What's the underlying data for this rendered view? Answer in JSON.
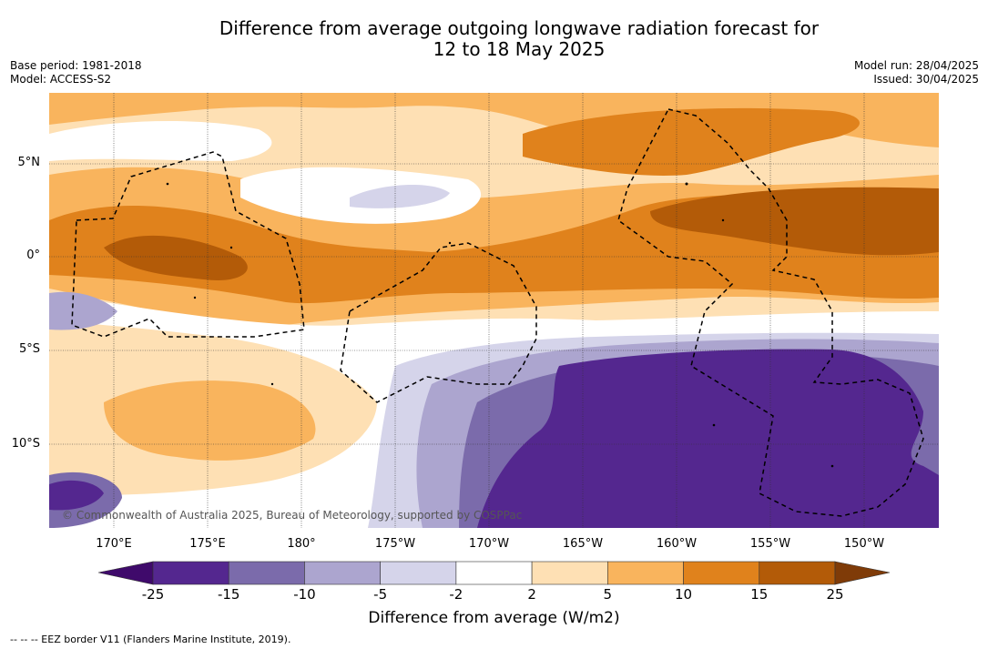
{
  "title": {
    "line1": "Difference from average outgoing longwave radiation forecast for",
    "line2": "12 to 18 May 2025"
  },
  "meta_left": {
    "base_period": "Base period: 1981-2018",
    "model": "Model: ACCESS-S2"
  },
  "meta_right": {
    "model_run": "Model run: 28/04/2025",
    "issued": "Issued: 30/04/2025"
  },
  "lat_labels": [
    "5°N",
    "0°",
    "5°S",
    "10°S"
  ],
  "lon_labels": [
    "170°E",
    "175°E",
    "180°",
    "175°W",
    "170°W",
    "165°W",
    "160°W",
    "155°W",
    "150°W"
  ],
  "copyright": "© Commonwealth of Australia 2025, Bureau of Meteorology, supported by COSPPac",
  "colorbar": {
    "ticks": [
      "-25",
      "-15",
      "-10",
      "-5",
      "-2",
      "2",
      "5",
      "10",
      "15",
      "25"
    ],
    "colors": {
      "lt_-25": "#3f0a6b",
      "-25_-15": "#54278f",
      "-15_-10": "#7b6bab",
      "-10_-5": "#aca5cf",
      "-5_-2": "#d5d4ea",
      "-2_2": "#ffffff",
      "2_5": "#fee0b4",
      "5_10": "#f9b45d",
      "10_15": "#e0821c",
      "15_25": "#b35b08",
      "gt_25": "#7f3b08"
    },
    "label": "Difference from average (W/m2)"
  },
  "footnote": "--  --  -- EEZ border V11 (Flanders Marine Institute, 2019)."
}
